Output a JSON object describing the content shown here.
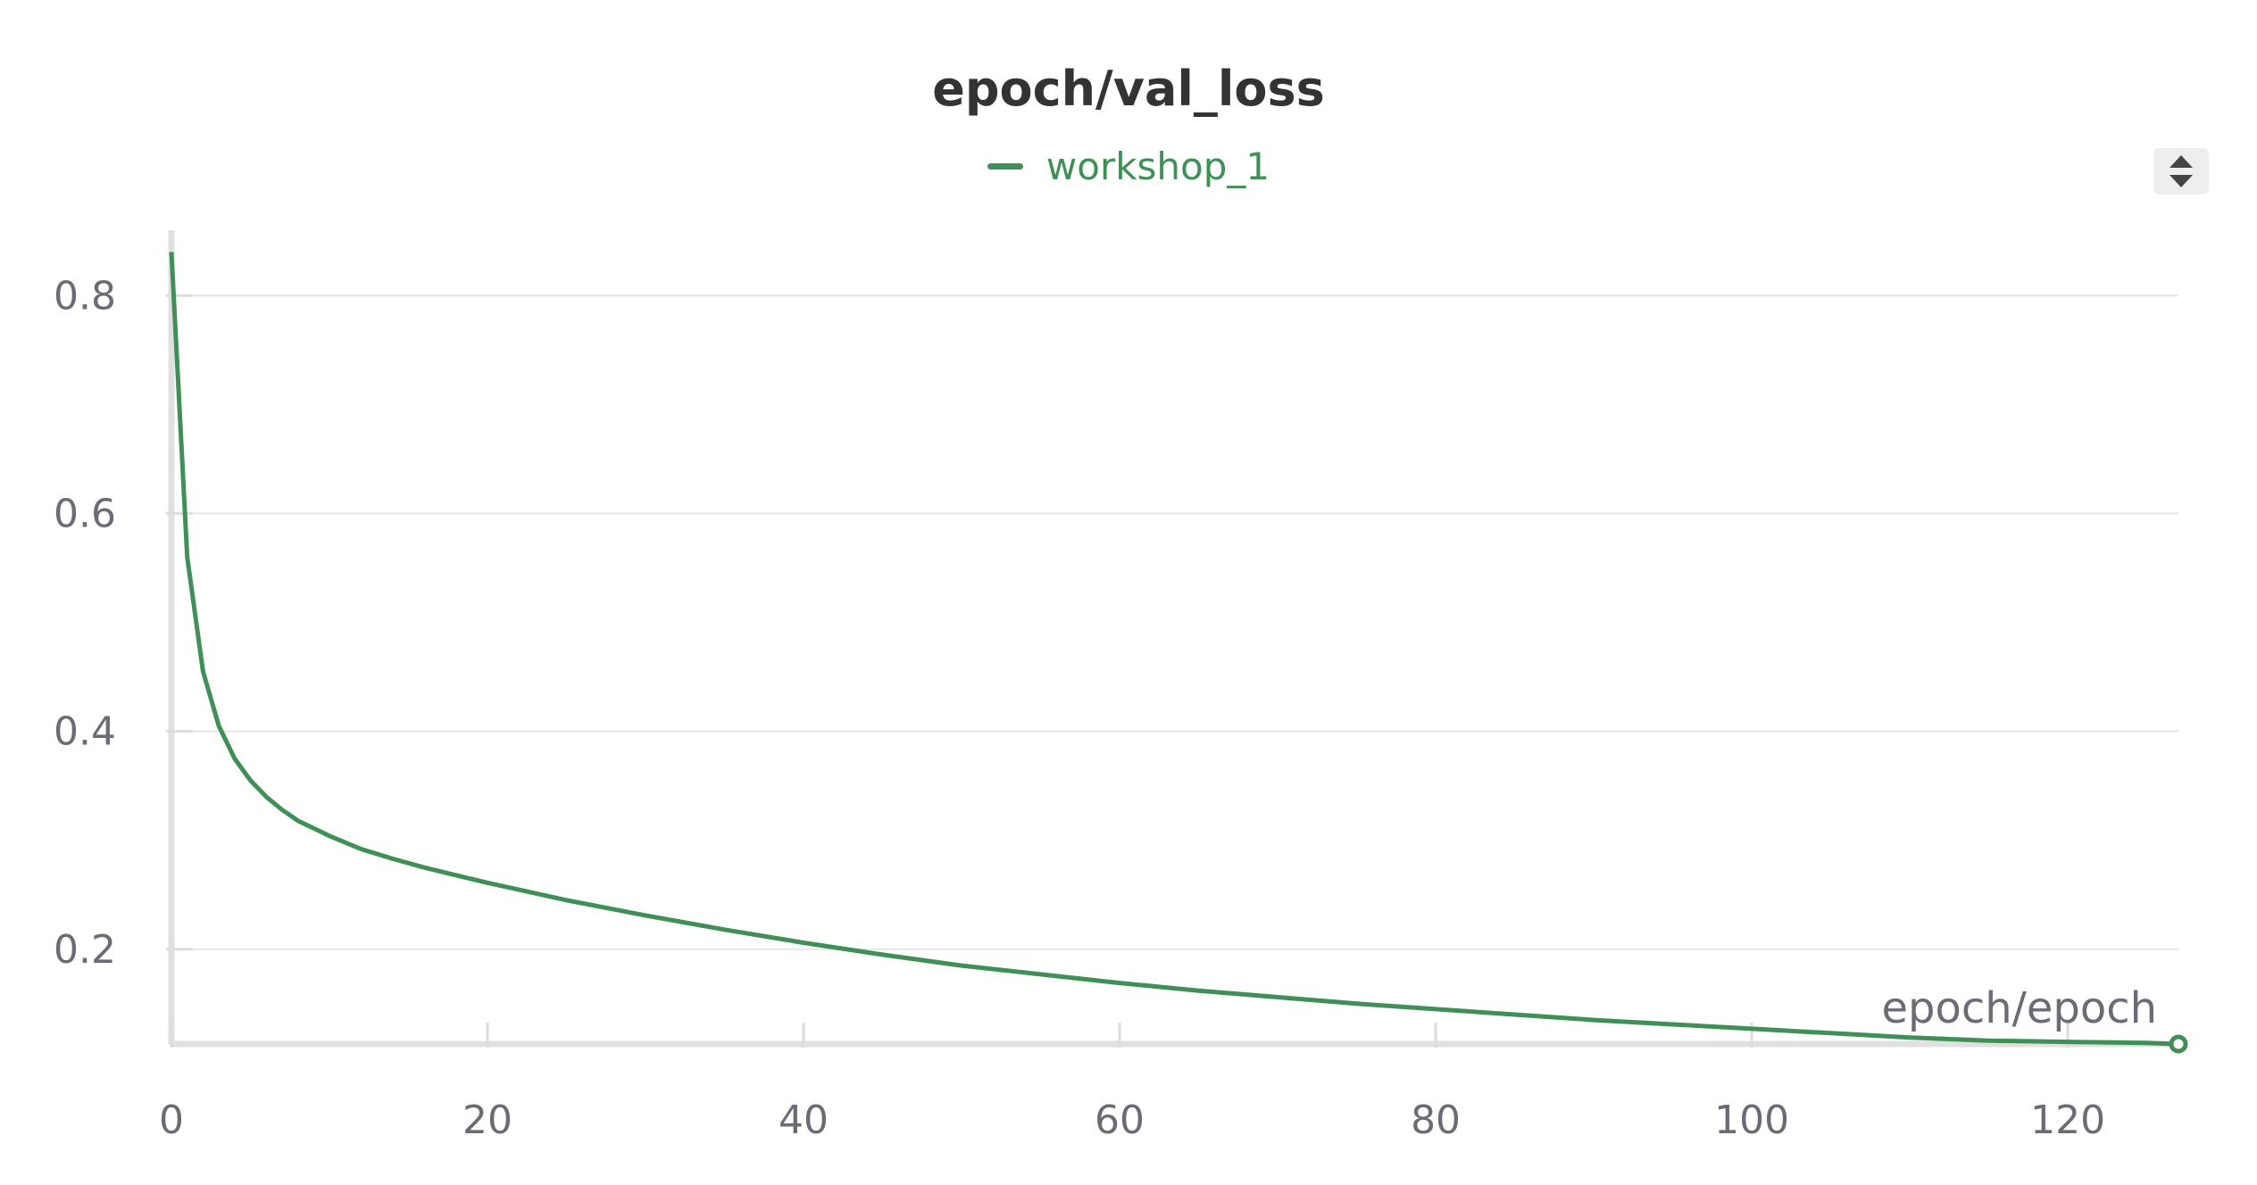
{
  "panel": {
    "title": "epoch/val_loss"
  },
  "legend": {
    "series_label": "workshop_1",
    "color": "#3f8f57"
  },
  "menu_button": {
    "icon": "sort-arrows-icon"
  },
  "chart_data": {
    "type": "line",
    "title": "epoch/val_loss",
    "xlabel": "epoch/epoch",
    "ylabel": "",
    "xlim": [
      0,
      127
    ],
    "ylim": [
      0.113,
      0.86
    ],
    "x_ticks": [
      0,
      20,
      40,
      60,
      80,
      100,
      120
    ],
    "y_ticks": [
      0.2,
      0.4,
      0.6,
      0.8
    ],
    "y_tick_labels": [
      "0.2",
      "0.4",
      "0.6",
      "0.8"
    ],
    "grid": true,
    "legend_position": "top-center",
    "series": [
      {
        "name": "workshop_1",
        "color": "#3f8f57",
        "x": [
          0,
          1,
          2,
          3,
          4,
          5,
          6,
          7,
          8,
          10,
          12,
          14,
          16,
          18,
          20,
          25,
          30,
          35,
          40,
          45,
          50,
          55,
          60,
          65,
          70,
          75,
          80,
          85,
          90,
          95,
          100,
          105,
          110,
          115,
          120,
          125,
          127
        ],
        "y": [
          0.84,
          0.56,
          0.455,
          0.405,
          0.375,
          0.355,
          0.34,
          0.328,
          0.318,
          0.304,
          0.292,
          0.283,
          0.275,
          0.268,
          0.261,
          0.245,
          0.231,
          0.218,
          0.206,
          0.195,
          0.185,
          0.177,
          0.169,
          0.162,
          0.156,
          0.15,
          0.145,
          0.14,
          0.135,
          0.131,
          0.127,
          0.123,
          0.119,
          0.116,
          0.115,
          0.114,
          0.113
        ]
      }
    ]
  }
}
